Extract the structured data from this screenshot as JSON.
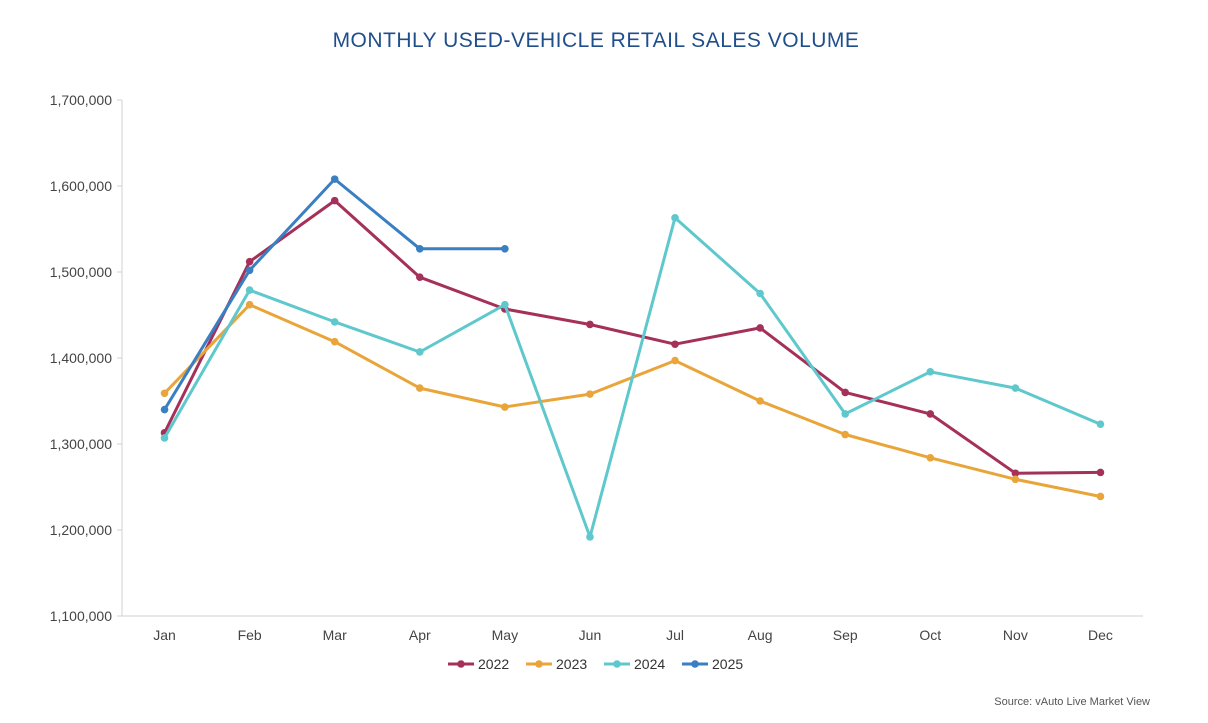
{
  "chart_data": {
    "type": "line",
    "title": "MONTHLY USED-VEHICLE RETAIL SALES VOLUME",
    "categories": [
      "Jan",
      "Feb",
      "Mar",
      "Apr",
      "May",
      "Jun",
      "Jul",
      "Aug",
      "Sep",
      "Oct",
      "Nov",
      "Dec"
    ],
    "ylim": [
      1100000,
      1700000
    ],
    "yticks": [
      1100000,
      1200000,
      1300000,
      1400000,
      1500000,
      1600000,
      1700000
    ],
    "ytick_labels": [
      "1,100,000",
      "1,200,000",
      "1,300,000",
      "1,400,000",
      "1,500,000",
      "1,600,000",
      "1,700,000"
    ],
    "grid": false,
    "legend_position": "bottom",
    "series": [
      {
        "name": "2022",
        "color": "#a5305a",
        "values": [
          1313000,
          1512000,
          1583000,
          1494000,
          1457000,
          1439000,
          1416000,
          1435000,
          1360000,
          1335000,
          1266000,
          1267000
        ]
      },
      {
        "name": "2023",
        "color": "#e9a53a",
        "values": [
          1359000,
          1462000,
          1419000,
          1365000,
          1343000,
          1358000,
          1397000,
          1350000,
          1311000,
          1284000,
          1259000,
          1239000
        ]
      },
      {
        "name": "2024",
        "color": "#5ec8cd",
        "values": [
          1307000,
          1479000,
          1442000,
          1407000,
          1462000,
          1192000,
          1563000,
          1475000,
          1335000,
          1384000,
          1365000,
          1323000
        ]
      },
      {
        "name": "2025",
        "color": "#3a7fc1",
        "values": [
          1340000,
          1502000,
          1608000,
          1527000,
          1527000,
          null,
          null,
          null,
          null,
          null,
          null,
          null
        ]
      }
    ],
    "source": "Source: vAuto Live Market View"
  }
}
